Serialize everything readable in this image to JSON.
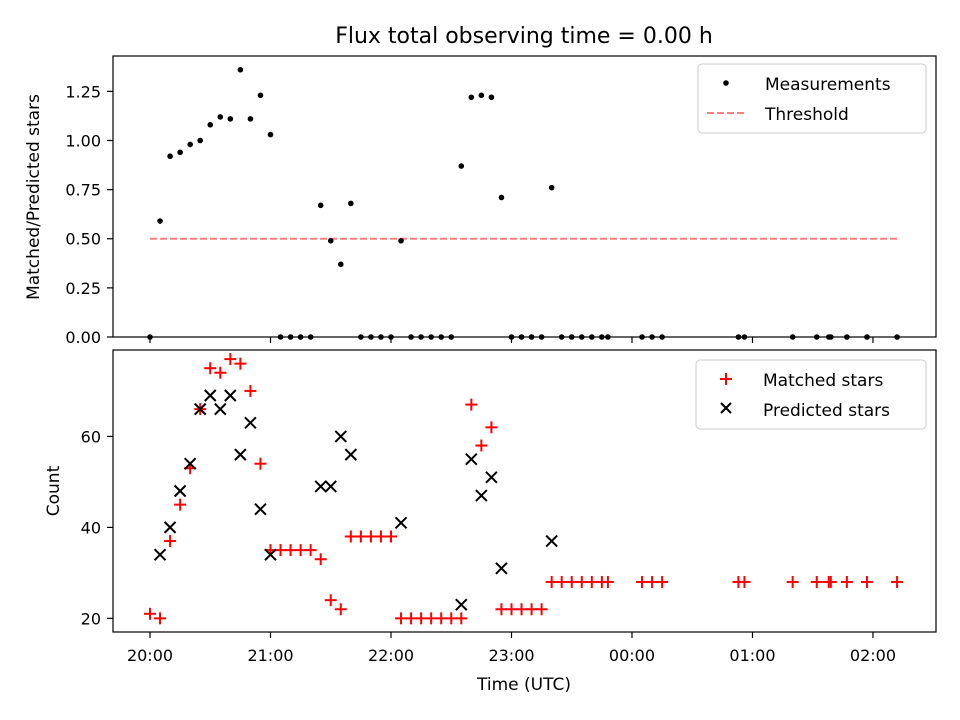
{
  "title": "Flux total observing time = 0.00 h",
  "colors": {
    "measure": "#000000",
    "threshold": "#ff7f7f",
    "matched": "#ff0000",
    "predicted": "#000000"
  },
  "chart_data": [
    {
      "type": "scatter",
      "ylabel": "Matched/Predicted stars",
      "ylim": [
        0,
        1.43
      ],
      "yticks": [
        "0.00",
        "0.25",
        "0.50",
        "0.75",
        "1.00",
        "1.25"
      ],
      "legend": {
        "placement": "top-right",
        "entries": [
          "Measurements",
          "Threshold"
        ]
      },
      "threshold": {
        "name": "Threshold",
        "y": 0.5,
        "x_start": "20:00",
        "x_end": "02:12"
      },
      "series": [
        {
          "name": "Measurements",
          "points": [
            [
              "20:00",
              0.0
            ],
            [
              "20:05",
              0.59
            ],
            [
              "20:10",
              0.92
            ],
            [
              "20:15",
              0.94
            ],
            [
              "20:20",
              0.98
            ],
            [
              "20:25",
              1.0
            ],
            [
              "20:30",
              1.08
            ],
            [
              "20:35",
              1.12
            ],
            [
              "20:40",
              1.11
            ],
            [
              "20:45",
              1.36
            ],
            [
              "20:50",
              1.11
            ],
            [
              "20:55",
              1.23
            ],
            [
              "21:00",
              1.03
            ],
            [
              "21:05",
              0.0
            ],
            [
              "21:10",
              0.0
            ],
            [
              "21:15",
              0.0
            ],
            [
              "21:20",
              0.0
            ],
            [
              "21:25",
              0.67
            ],
            [
              "21:30",
              0.49
            ],
            [
              "21:35",
              0.37
            ],
            [
              "21:40",
              0.68
            ],
            [
              "21:45",
              0.0
            ],
            [
              "21:50",
              0.0
            ],
            [
              "21:55",
              0.0
            ],
            [
              "22:00",
              0.0
            ],
            [
              "22:05",
              0.49
            ],
            [
              "22:10",
              0.0
            ],
            [
              "22:15",
              0.0
            ],
            [
              "22:20",
              0.0
            ],
            [
              "22:25",
              0.0
            ],
            [
              "22:30",
              0.0
            ],
            [
              "22:35",
              0.87
            ],
            [
              "22:40",
              1.22
            ],
            [
              "22:45",
              1.23
            ],
            [
              "22:50",
              1.22
            ],
            [
              "22:55",
              0.71
            ],
            [
              "23:00",
              0.0
            ],
            [
              "23:05",
              0.0
            ],
            [
              "23:10",
              0.0
            ],
            [
              "23:15",
              0.0
            ],
            [
              "23:20",
              0.76
            ],
            [
              "23:25",
              0.0
            ],
            [
              "23:30",
              0.0
            ],
            [
              "23:35",
              0.0
            ],
            [
              "23:40",
              0.0
            ],
            [
              "23:45",
              0.0
            ],
            [
              "23:48",
              0.0
            ],
            [
              "00:05",
              0.0
            ],
            [
              "00:10",
              0.0
            ],
            [
              "00:15",
              0.0
            ],
            [
              "00:53",
              0.0
            ],
            [
              "00:56",
              0.0
            ],
            [
              "01:20",
              0.0
            ],
            [
              "01:32",
              0.0
            ],
            [
              "01:38",
              0.0
            ],
            [
              "01:39",
              0.0
            ],
            [
              "01:47",
              0.0
            ],
            [
              "01:57",
              0.0
            ],
            [
              "02:12",
              0.0
            ]
          ]
        }
      ]
    },
    {
      "type": "scatter",
      "xlabel": "Time (UTC)",
      "ylabel": "Count",
      "ylim": [
        17,
        79
      ],
      "yticks": [
        "20",
        "40",
        "60"
      ],
      "xticks": [
        "20:00",
        "21:00",
        "22:00",
        "23:00",
        "00:00",
        "01:00",
        "02:00"
      ],
      "legend": {
        "placement": "top-right",
        "entries": [
          "Matched stars",
          "Predicted stars"
        ]
      },
      "series": [
        {
          "name": "Matched stars",
          "marker": "plus",
          "points": [
            [
              "20:00",
              21
            ],
            [
              "20:05",
              20
            ],
            [
              "20:10",
              37
            ],
            [
              "20:15",
              45
            ],
            [
              "20:20",
              53
            ],
            [
              "20:25",
              66
            ],
            [
              "20:30",
              75
            ],
            [
              "20:35",
              74
            ],
            [
              "20:40",
              77
            ],
            [
              "20:45",
              76
            ],
            [
              "20:50",
              70
            ],
            [
              "20:55",
              54
            ],
            [
              "21:00",
              35
            ],
            [
              "21:05",
              35
            ],
            [
              "21:10",
              35
            ],
            [
              "21:15",
              35
            ],
            [
              "21:20",
              35
            ],
            [
              "21:25",
              33
            ],
            [
              "21:30",
              24
            ],
            [
              "21:35",
              22
            ],
            [
              "21:40",
              38
            ],
            [
              "21:45",
              38
            ],
            [
              "21:50",
              38
            ],
            [
              "21:55",
              38
            ],
            [
              "22:00",
              38
            ],
            [
              "22:05",
              20
            ],
            [
              "22:10",
              20
            ],
            [
              "22:15",
              20
            ],
            [
              "22:20",
              20
            ],
            [
              "22:25",
              20
            ],
            [
              "22:30",
              20
            ],
            [
              "22:35",
              20
            ],
            [
              "22:40",
              67
            ],
            [
              "22:45",
              58
            ],
            [
              "22:50",
              62
            ],
            [
              "22:55",
              22
            ],
            [
              "23:00",
              22
            ],
            [
              "23:05",
              22
            ],
            [
              "23:10",
              22
            ],
            [
              "23:15",
              22
            ],
            [
              "23:20",
              28
            ],
            [
              "23:25",
              28
            ],
            [
              "23:30",
              28
            ],
            [
              "23:35",
              28
            ],
            [
              "23:40",
              28
            ],
            [
              "23:45",
              28
            ],
            [
              "23:48",
              28
            ],
            [
              "00:05",
              28
            ],
            [
              "00:10",
              28
            ],
            [
              "00:15",
              28
            ],
            [
              "00:53",
              28
            ],
            [
              "00:56",
              28
            ],
            [
              "01:20",
              28
            ],
            [
              "01:32",
              28
            ],
            [
              "01:38",
              28
            ],
            [
              "01:39",
              28
            ],
            [
              "01:47",
              28
            ],
            [
              "01:57",
              28
            ],
            [
              "02:12",
              28
            ]
          ]
        },
        {
          "name": "Predicted stars",
          "marker": "x",
          "points": [
            [
              "20:05",
              34
            ],
            [
              "20:10",
              40
            ],
            [
              "20:15",
              48
            ],
            [
              "20:20",
              54
            ],
            [
              "20:25",
              66
            ],
            [
              "20:30",
              69
            ],
            [
              "20:35",
              66
            ],
            [
              "20:40",
              69
            ],
            [
              "20:45",
              56
            ],
            [
              "20:50",
              63
            ],
            [
              "20:55",
              44
            ],
            [
              "21:00",
              34
            ],
            [
              "21:25",
              49
            ],
            [
              "21:30",
              49
            ],
            [
              "21:35",
              60
            ],
            [
              "21:40",
              56
            ],
            [
              "22:05",
              41
            ],
            [
              "22:35",
              23
            ],
            [
              "22:40",
              55
            ],
            [
              "22:45",
              47
            ],
            [
              "22:50",
              51
            ],
            [
              "22:55",
              31
            ],
            [
              "23:20",
              37
            ]
          ]
        }
      ]
    }
  ]
}
